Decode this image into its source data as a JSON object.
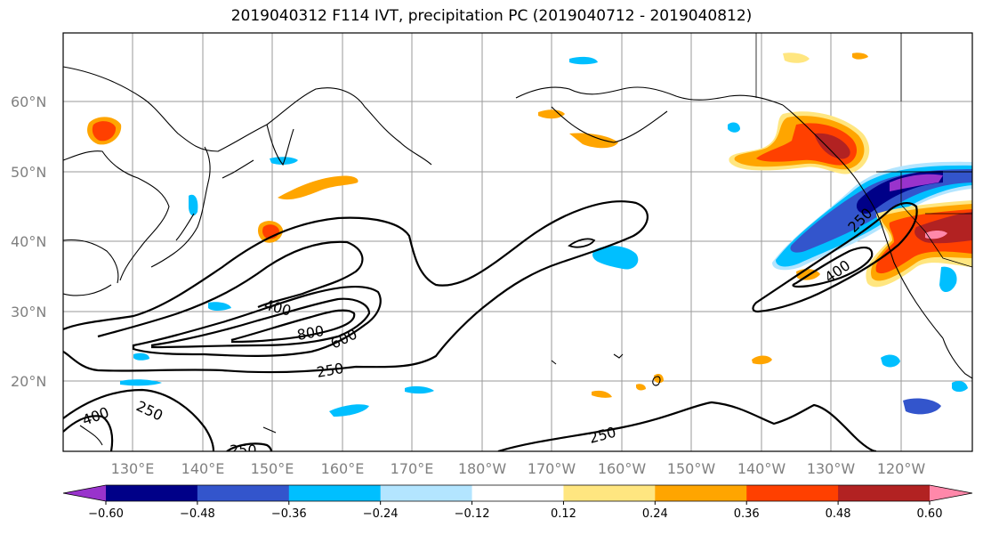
{
  "title": "2019040312 F114 IVT, precipitation PC (2019040712 - 2019040812)",
  "lat_labels": [
    "60°N",
    "50°N",
    "40°N",
    "30°N",
    "20°N"
  ],
  "lon_labels": [
    "130°E",
    "140°E",
    "150°E",
    "160°E",
    "170°E",
    "180°W",
    "170°W",
    "160°W",
    "150°W",
    "140°W",
    "130°W",
    "120°W"
  ],
  "contour_labels": [
    "400",
    "800",
    "600",
    "250",
    "400",
    "250",
    "250",
    "250",
    "400",
    "250"
  ],
  "colorbar": {
    "colors": [
      "#9933cc",
      "#000088",
      "#3355cc",
      "#00bfff",
      "#b3e5ff",
      "#ffffff",
      "#ffe680",
      "#ffa500",
      "#ff4000",
      "#b22222",
      "#ff88aa"
    ],
    "ticks": [
      "−0.60",
      "−0.48",
      "−0.36",
      "−0.24",
      "−0.12",
      "0.12",
      "0.24",
      "0.36",
      "0.48",
      "0.60"
    ]
  }
}
